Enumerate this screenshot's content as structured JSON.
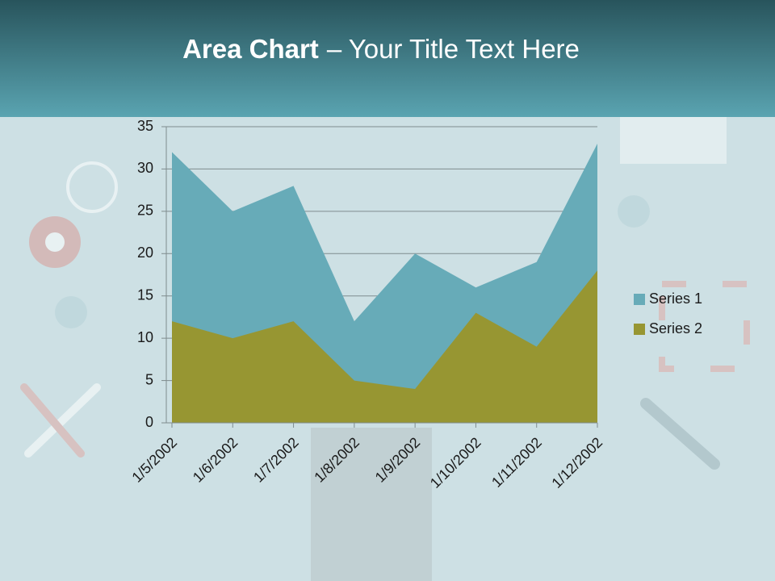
{
  "chart_data": {
    "type": "area",
    "title": [
      "Area Chart",
      "– Your Title Text Here"
    ],
    "categories": [
      "1/5/2002",
      "1/6/2002",
      "1/7/2002",
      "1/8/2002",
      "1/9/2002",
      "1/10/2002",
      "1/11/2002",
      "1/12/2002"
    ],
    "series": [
      {
        "name": "Series 1",
        "color": "#67abb8",
        "values": [
          32,
          25,
          28,
          12,
          20,
          16,
          19,
          33
        ]
      },
      {
        "name": "Series 2",
        "color": "#979632",
        "values": [
          12,
          10,
          12,
          5,
          4,
          13,
          9,
          18
        ]
      }
    ],
    "ylim": [
      0,
      35
    ],
    "yticks": [
      0,
      5,
      10,
      15,
      20,
      25,
      30,
      35
    ],
    "grid": true,
    "legend": "right"
  }
}
